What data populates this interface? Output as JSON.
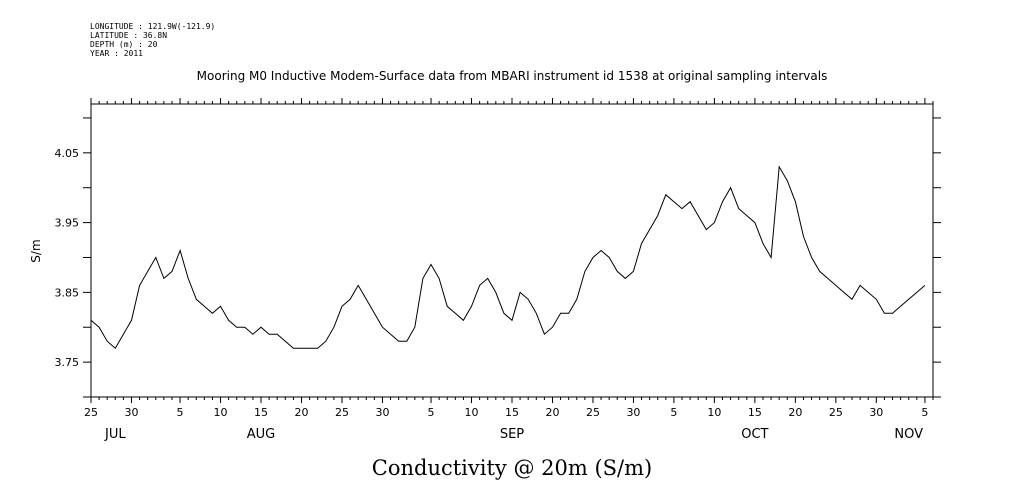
{
  "header": {
    "longitude": "LONGITUDE : 121.9W(-121.9)",
    "latitude": "LATITUDE : 36.8N",
    "depth": "DEPTH (m) : 20",
    "year": "YEAR : 2011"
  },
  "chart_data": {
    "type": "line",
    "title": "Mooring M0 Inductive Modem-Surface data from MBARI instrument id 1538 at original sampling intervals",
    "xlabel": "Conductivity @ 20m (S/m)",
    "ylabel": "S/m",
    "ylim": [
      3.7,
      4.12
    ],
    "xlim": [
      "2011-07-25",
      "2011-11-06"
    ],
    "yticks": [
      3.75,
      3.85,
      3.95,
      4.05
    ],
    "ytick_labels": [
      "3.75",
      "3.85",
      "3.95",
      "4.05"
    ],
    "xticks": [
      {
        "date": "2011-07-25",
        "label": "25"
      },
      {
        "date": "2011-07-30",
        "label": "30"
      },
      {
        "date": "2011-08-05",
        "label": "5"
      },
      {
        "date": "2011-08-10",
        "label": "10"
      },
      {
        "date": "2011-08-15",
        "label": "15"
      },
      {
        "date": "2011-08-20",
        "label": "20"
      },
      {
        "date": "2011-08-25",
        "label": "25"
      },
      {
        "date": "2011-08-30",
        "label": "30"
      },
      {
        "date": "2011-09-05",
        "label": "5"
      },
      {
        "date": "2011-09-10",
        "label": "10"
      },
      {
        "date": "2011-09-15",
        "label": "15"
      },
      {
        "date": "2011-09-20",
        "label": "20"
      },
      {
        "date": "2011-09-25",
        "label": "25"
      },
      {
        "date": "2011-09-30",
        "label": "30"
      },
      {
        "date": "2011-10-05",
        "label": "5"
      },
      {
        "date": "2011-10-10",
        "label": "10"
      },
      {
        "date": "2011-10-15",
        "label": "15"
      },
      {
        "date": "2011-10-20",
        "label": "20"
      },
      {
        "date": "2011-10-25",
        "label": "25"
      },
      {
        "date": "2011-10-30",
        "label": "30"
      },
      {
        "date": "2011-11-05",
        "label": "5"
      }
    ],
    "month_labels": [
      {
        "date": "2011-07-28",
        "label": "JUL"
      },
      {
        "date": "2011-08-15",
        "label": "AUG"
      },
      {
        "date": "2011-09-15",
        "label": "SEP"
      },
      {
        "date": "2011-10-15",
        "label": "OCT"
      },
      {
        "date": "2011-11-03",
        "label": "NOV"
      }
    ],
    "grid": false,
    "series": [
      {
        "x": [
          "2011-07-25",
          "2011-07-26",
          "2011-07-27",
          "2011-07-28",
          "2011-07-29",
          "2011-07-30",
          "2011-07-31",
          "2011-08-01",
          "2011-08-02",
          "2011-08-03",
          "2011-08-04",
          "2011-08-05",
          "2011-08-06",
          "2011-08-07",
          "2011-08-08",
          "2011-08-09",
          "2011-08-10",
          "2011-08-11",
          "2011-08-12",
          "2011-08-13",
          "2011-08-14",
          "2011-08-15",
          "2011-08-16",
          "2011-08-17",
          "2011-08-18",
          "2011-08-19",
          "2011-08-20",
          "2011-08-21",
          "2011-08-22",
          "2011-08-23",
          "2011-08-24",
          "2011-08-25",
          "2011-08-26",
          "2011-08-27",
          "2011-08-28",
          "2011-08-29",
          "2011-08-30",
          "2011-08-31",
          "2011-09-01",
          "2011-09-02",
          "2011-09-03",
          "2011-09-04",
          "2011-09-05",
          "2011-09-06",
          "2011-09-07",
          "2011-09-08",
          "2011-09-09",
          "2011-09-10",
          "2011-09-11",
          "2011-09-12",
          "2011-09-13",
          "2011-09-14",
          "2011-09-15",
          "2011-09-16",
          "2011-09-17",
          "2011-09-18",
          "2011-09-19",
          "2011-09-20",
          "2011-09-21",
          "2011-09-22",
          "2011-09-23",
          "2011-09-24",
          "2011-09-25",
          "2011-09-26",
          "2011-09-27",
          "2011-09-28",
          "2011-09-29",
          "2011-09-30",
          "2011-10-01",
          "2011-10-02",
          "2011-10-03",
          "2011-10-04",
          "2011-10-05",
          "2011-10-06",
          "2011-10-07",
          "2011-10-08",
          "2011-10-09",
          "2011-10-10",
          "2011-10-11",
          "2011-10-12",
          "2011-10-13",
          "2011-10-14",
          "2011-10-15",
          "2011-10-16",
          "2011-10-17",
          "2011-10-18",
          "2011-10-19",
          "2011-10-20",
          "2011-10-21",
          "2011-10-22",
          "2011-10-23",
          "2011-10-24",
          "2011-10-25",
          "2011-10-26",
          "2011-10-27",
          "2011-10-28",
          "2011-10-29",
          "2011-10-30",
          "2011-10-31",
          "2011-11-01",
          "2011-11-02",
          "2011-11-03",
          "2011-11-04",
          "2011-11-05"
        ],
        "y": [
          3.81,
          3.8,
          3.78,
          3.77,
          3.79,
          3.81,
          3.86,
          3.88,
          3.9,
          3.87,
          3.88,
          3.91,
          3.87,
          3.84,
          3.83,
          3.82,
          3.83,
          3.81,
          3.8,
          3.8,
          3.79,
          3.8,
          3.79,
          3.79,
          3.78,
          3.77,
          3.77,
          3.77,
          3.77,
          3.78,
          3.8,
          3.83,
          3.84,
          3.86,
          3.84,
          3.82,
          3.8,
          3.79,
          3.78,
          3.78,
          3.8,
          3.87,
          3.89,
          3.87,
          3.83,
          3.82,
          3.81,
          3.83,
          3.86,
          3.87,
          3.85,
          3.82,
          3.81,
          3.85,
          3.84,
          3.82,
          3.79,
          3.8,
          3.82,
          3.82,
          3.84,
          3.88,
          3.9,
          3.91,
          3.9,
          3.88,
          3.87,
          3.88,
          3.92,
          3.94,
          3.96,
          3.99,
          3.98,
          3.97,
          3.98,
          3.96,
          3.94,
          3.95,
          3.98,
          4.0,
          3.97,
          3.96,
          3.95,
          3.92,
          3.9,
          4.03,
          4.01,
          3.98,
          3.93,
          3.9,
          3.88,
          3.87,
          3.86,
          3.85,
          3.84,
          3.86,
          3.85,
          3.84,
          3.82,
          3.82,
          3.83,
          3.84,
          3.85,
          3.86
        ]
      }
    ]
  }
}
